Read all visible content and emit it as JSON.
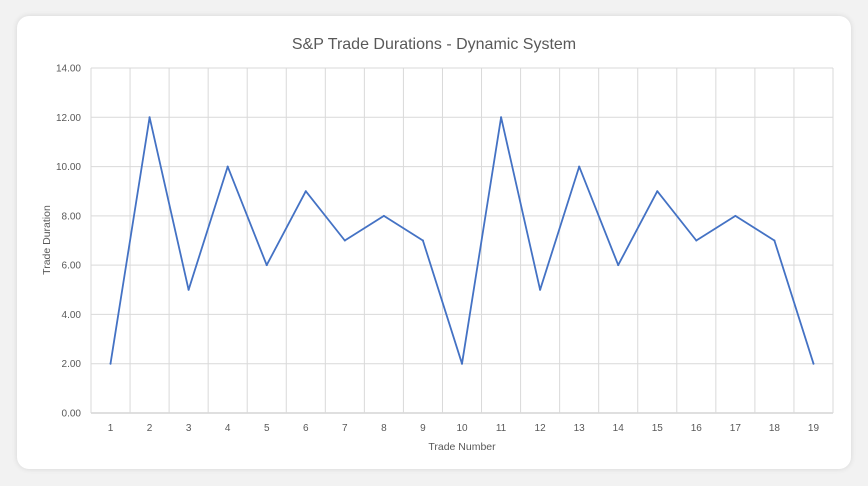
{
  "chart_data": {
    "type": "line",
    "title": "S&P Trade Durations - Dynamic System",
    "xlabel": "Trade Number",
    "ylabel": "Trade Duration",
    "categories": [
      "1",
      "2",
      "3",
      "4",
      "5",
      "6",
      "7",
      "8",
      "9",
      "10",
      "11",
      "12",
      "13",
      "14",
      "15",
      "16",
      "17",
      "18",
      "19"
    ],
    "values": [
      2,
      12,
      5,
      10,
      6,
      9,
      7,
      8,
      7,
      2,
      12,
      5,
      10,
      6,
      9,
      7,
      8,
      7,
      2
    ],
    "ylim": [
      0,
      14
    ],
    "yticks": [
      "0.00",
      "2.00",
      "4.00",
      "6.00",
      "8.00",
      "10.00",
      "12.00",
      "14.00"
    ],
    "grid": true,
    "line_color": "#4472c4",
    "legend": "none"
  }
}
